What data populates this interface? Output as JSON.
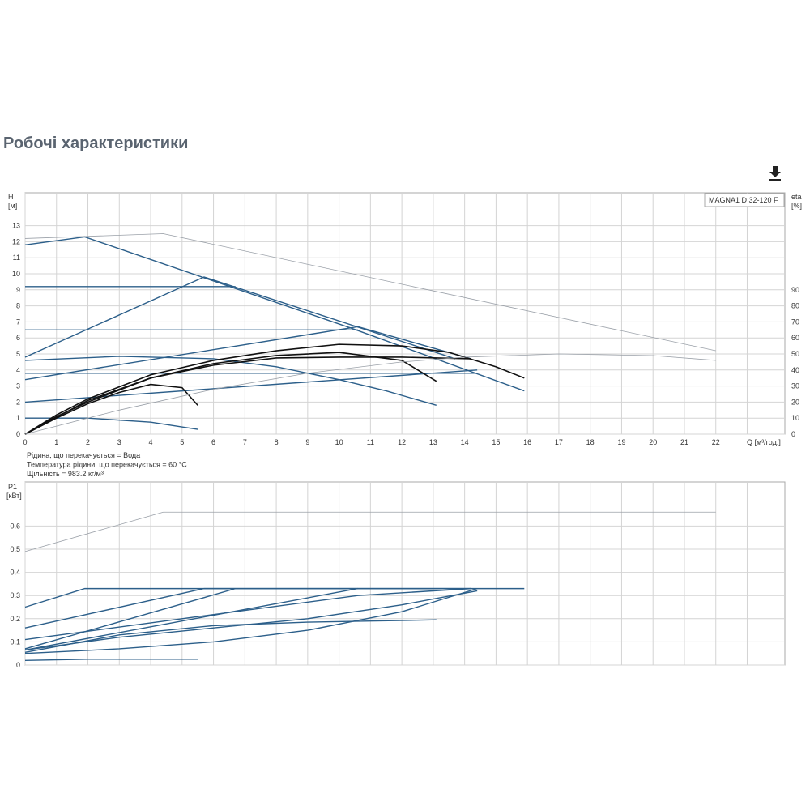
{
  "page": {
    "title": "Робочі характеристики",
    "download_icon": "download-icon"
  },
  "chart_data": [
    {
      "type": "line",
      "name": "head",
      "legend": "MAGNA1 D 32-120 F",
      "xlabel": "Q [м³/год.]",
      "ylabel_line1": "H",
      "ylabel_line2": "[м]",
      "y2label_line1": "eta",
      "y2label_line2": "[%]",
      "xlim": [
        0,
        24.2
      ],
      "ylim": [
        0,
        15
      ],
      "y2lim": [
        0,
        100
      ],
      "x_ticks": [
        0,
        1,
        2,
        3,
        4,
        5,
        6,
        7,
        8,
        9,
        10,
        11,
        12,
        13,
        14,
        15,
        16,
        17,
        18,
        19,
        20,
        21,
        22
      ],
      "y_ticks": [
        0,
        1,
        2,
        3,
        4,
        5,
        6,
        7,
        8,
        9,
        10,
        11,
        12,
        13
      ],
      "y2_ticks": [
        0,
        10,
        20,
        30,
        40,
        50,
        60,
        70,
        80,
        90
      ],
      "grid": true,
      "notes": [
        "Рідина, що перекачується = Вода",
        "Температура рідини, що перекачується = 60 °C",
        "Щільність = 983.2 кг/м³"
      ],
      "series": [
        {
          "kind": "max",
          "color": "#9aa0a8",
          "x": [
            0,
            4.4,
            22
          ],
          "y": [
            12.2,
            12.5,
            5.2
          ]
        },
        {
          "kind": "head",
          "color": "#2c5f8a",
          "x": [
            0,
            1.9,
            10.4,
            15.9
          ],
          "y": [
            11.8,
            12.3,
            6.6,
            2.7
          ]
        },
        {
          "kind": "head",
          "color": "#2c5f8a",
          "x": [
            0,
            5.7,
            13.7
          ],
          "y": [
            4.8,
            9.8,
            4.7
          ]
        },
        {
          "kind": "head",
          "color": "#2c5f8a",
          "x": [
            0,
            6.7
          ],
          "y": [
            9.2,
            9.2
          ]
        },
        {
          "kind": "head",
          "color": "#2c5f8a",
          "x": [
            0,
            10.6
          ],
          "y": [
            6.5,
            6.5
          ]
        },
        {
          "kind": "head",
          "color": "#2c5f8a",
          "x": [
            0,
            10.6,
            14.2
          ],
          "y": [
            3.4,
            6.7,
            4.7
          ]
        },
        {
          "kind": "head",
          "color": "#2c5f8a",
          "x": [
            0,
            3,
            6,
            8,
            10,
            11.5,
            13.1
          ],
          "y": [
            4.6,
            4.85,
            4.7,
            4.2,
            3.4,
            2.7,
            1.8
          ]
        },
        {
          "kind": "head",
          "color": "#2c5f8a",
          "x": [
            0,
            14.4
          ],
          "y": [
            3.8,
            3.8
          ]
        },
        {
          "kind": "head",
          "color": "#2c5f8a",
          "x": [
            0,
            14.4
          ],
          "y": [
            2.0,
            4.0
          ]
        },
        {
          "kind": "head",
          "color": "#2c5f8a",
          "x": [
            0,
            2,
            4,
            5.5
          ],
          "y": [
            1.0,
            1.0,
            0.75,
            0.3
          ]
        },
        {
          "kind": "system",
          "color": "#111111",
          "x": [
            0,
            1,
            2,
            4,
            6,
            8,
            10,
            12,
            13.5,
            15,
            15.9
          ],
          "y": [
            0,
            1.2,
            2.2,
            3.7,
            4.6,
            5.2,
            5.6,
            5.5,
            5.1,
            4.2,
            3.5
          ]
        },
        {
          "kind": "system",
          "color": "#111111",
          "x": [
            0,
            1,
            2,
            4,
            6,
            8,
            10,
            12,
            13.1
          ],
          "y": [
            0,
            1.1,
            2.0,
            3.5,
            4.4,
            4.9,
            5.1,
            4.6,
            3.3
          ]
        },
        {
          "kind": "system",
          "color": "#111111",
          "x": [
            0,
            1,
            2,
            3,
            4,
            5,
            5.5
          ],
          "y": [
            0,
            1.0,
            1.9,
            2.6,
            3.1,
            2.9,
            1.8
          ]
        },
        {
          "kind": "system",
          "color": "#111111",
          "x": [
            0,
            2,
            4,
            6,
            8,
            10,
            12,
            14.2
          ],
          "y": [
            0,
            2.1,
            3.5,
            4.3,
            4.75,
            4.8,
            4.8,
            4.7
          ]
        },
        {
          "kind": "efficiency",
          "color": "#9aa0a8",
          "x": [
            0,
            3,
            6,
            9,
            12,
            14,
            17,
            20,
            22
          ],
          "y": [
            0,
            15,
            28,
            38,
            45,
            48,
            50,
            49,
            46
          ]
        }
      ]
    },
    {
      "type": "line",
      "name": "power",
      "ylabel_line1": "P1",
      "ylabel_line2": "[кВт]",
      "xlim": [
        0,
        24.2
      ],
      "ylim": [
        0,
        0.7
      ],
      "y_ticks": [
        0,
        0.1,
        0.2,
        0.3,
        0.4,
        0.5,
        0.6
      ],
      "grid": true,
      "series": [
        {
          "kind": "max",
          "color": "#9aa0a8",
          "x": [
            0,
            4.4,
            22
          ],
          "y": [
            0.49,
            0.66,
            0.66
          ]
        },
        {
          "kind": "power",
          "color": "#2c5f8a",
          "x": [
            0,
            1.9,
            15.9
          ],
          "y": [
            0.25,
            0.33,
            0.33
          ]
        },
        {
          "kind": "power",
          "color": "#2c5f8a",
          "x": [
            0,
            5.7,
            14.2
          ],
          "y": [
            0.16,
            0.33,
            0.33
          ]
        },
        {
          "kind": "power",
          "color": "#2c5f8a",
          "x": [
            0,
            6.7
          ],
          "y": [
            0.07,
            0.33
          ]
        },
        {
          "kind": "power",
          "color": "#2c5f8a",
          "x": [
            0,
            10.6
          ],
          "y": [
            0.065,
            0.33
          ]
        },
        {
          "kind": "power",
          "color": "#2c5f8a",
          "x": [
            0,
            5,
            10.6,
            14.2
          ],
          "y": [
            0.11,
            0.2,
            0.3,
            0.33
          ]
        },
        {
          "kind": "power",
          "color": "#2c5f8a",
          "x": [
            0,
            3,
            6,
            9,
            11,
            13.1
          ],
          "y": [
            0.055,
            0.13,
            0.17,
            0.185,
            0.19,
            0.195
          ]
        },
        {
          "kind": "power",
          "color": "#2c5f8a",
          "x": [
            0,
            3,
            6,
            9,
            12,
            14.4
          ],
          "y": [
            0.065,
            0.12,
            0.16,
            0.2,
            0.26,
            0.32
          ]
        },
        {
          "kind": "power",
          "color": "#2c5f8a",
          "x": [
            0,
            3,
            6,
            9,
            12,
            14.4
          ],
          "y": [
            0.05,
            0.07,
            0.1,
            0.15,
            0.23,
            0.33
          ]
        },
        {
          "kind": "power",
          "color": "#2c5f8a",
          "x": [
            0,
            2,
            5.5
          ],
          "y": [
            0.02,
            0.025,
            0.025
          ]
        }
      ]
    }
  ]
}
